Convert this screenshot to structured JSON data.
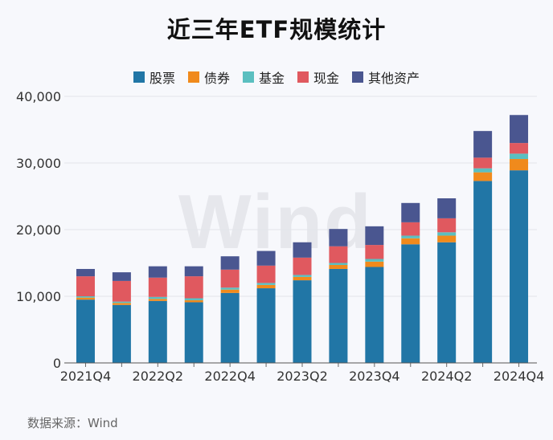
{
  "chart_data": {
    "type": "bar",
    "stacked": true,
    "title": "近三年ETF规模统计",
    "source": "数据来源：Wind",
    "watermark": "Wind",
    "ylim": [
      0,
      40000
    ],
    "yticks": [
      0,
      10000,
      20000,
      30000,
      40000
    ],
    "ytick_labels": [
      "0",
      "10,000",
      "20,000",
      "30,000",
      "40,000"
    ],
    "categories": [
      "2021Q4",
      "2022Q1",
      "2022Q2",
      "2022Q3",
      "2022Q4",
      "2023Q1",
      "2023Q2",
      "2023Q3",
      "2023Q4",
      "2024Q1",
      "2024Q2",
      "2024Q3",
      "2024Q4"
    ],
    "xtick_labels": [
      "2021Q4",
      "",
      "2022Q2",
      "",
      "2022Q4",
      "",
      "2023Q2",
      "",
      "2023Q4",
      "",
      "2024Q2",
      "",
      "2024Q4"
    ],
    "legend_position": "top-center",
    "series": [
      {
        "name": "股票",
        "color": "#2176a6",
        "values": [
          9500,
          8700,
          9300,
          9100,
          10500,
          11200,
          12400,
          14100,
          14400,
          17800,
          18100,
          27300,
          28900
        ]
      },
      {
        "name": "债券",
        "color": "#f08a1c",
        "values": [
          300,
          300,
          300,
          300,
          500,
          500,
          500,
          600,
          800,
          900,
          1000,
          1300,
          1700
        ]
      },
      {
        "name": "基金",
        "color": "#5bbfc0",
        "values": [
          200,
          200,
          300,
          300,
          300,
          300,
          300,
          300,
          400,
          400,
          500,
          600,
          800
        ]
      },
      {
        "name": "现金",
        "color": "#e0595f",
        "values": [
          3000,
          3100,
          2900,
          3300,
          2700,
          2600,
          2600,
          2500,
          2100,
          2000,
          2100,
          1600,
          1600
        ]
      },
      {
        "name": "其他资产",
        "color": "#4a5690",
        "values": [
          1100,
          1300,
          1700,
          1500,
          2000,
          2200,
          2300,
          2600,
          2800,
          2900,
          3000,
          4000,
          4200
        ]
      }
    ]
  }
}
